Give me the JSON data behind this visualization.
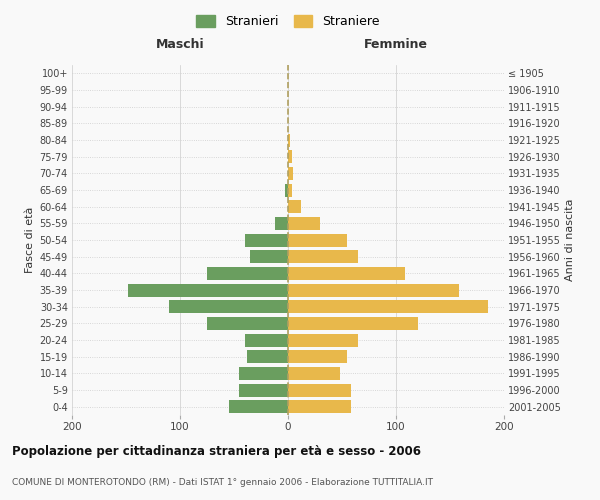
{
  "age_groups": [
    "0-4",
    "5-9",
    "10-14",
    "15-19",
    "20-24",
    "25-29",
    "30-34",
    "35-39",
    "40-44",
    "45-49",
    "50-54",
    "55-59",
    "60-64",
    "65-69",
    "70-74",
    "75-79",
    "80-84",
    "85-89",
    "90-94",
    "95-99",
    "100+"
  ],
  "birth_years": [
    "2001-2005",
    "1996-2000",
    "1991-1995",
    "1986-1990",
    "1981-1985",
    "1976-1980",
    "1971-1975",
    "1966-1970",
    "1961-1965",
    "1956-1960",
    "1951-1955",
    "1946-1950",
    "1941-1945",
    "1936-1940",
    "1931-1935",
    "1926-1930",
    "1921-1925",
    "1916-1920",
    "1911-1915",
    "1906-1910",
    "≤ 1905"
  ],
  "maschi": [
    55,
    45,
    45,
    38,
    40,
    75,
    110,
    148,
    75,
    35,
    40,
    12,
    0,
    3,
    0,
    0,
    0,
    0,
    0,
    0,
    0
  ],
  "femmine": [
    58,
    58,
    48,
    55,
    65,
    120,
    185,
    158,
    108,
    65,
    55,
    30,
    12,
    4,
    5,
    4,
    2,
    0,
    0,
    0,
    0
  ],
  "male_color": "#6a9e5f",
  "female_color": "#e8b84b",
  "background_color": "#f9f9f9",
  "grid_color": "#cccccc",
  "dashed_line_color": "#b0a060",
  "title": "Popolazione per cittadinanza straniera per età e sesso - 2006",
  "subtitle": "COMUNE DI MONTEROTONDO (RM) - Dati ISTAT 1° gennaio 2006 - Elaborazione TUTTITALIA.IT",
  "ylabel_left": "Fasce di età",
  "ylabel_right": "Anni di nascita",
  "xlabel_left": "Maschi",
  "xlabel_right": "Femmine",
  "legend_male": "Stranieri",
  "legend_female": "Straniere",
  "xlim": 200
}
